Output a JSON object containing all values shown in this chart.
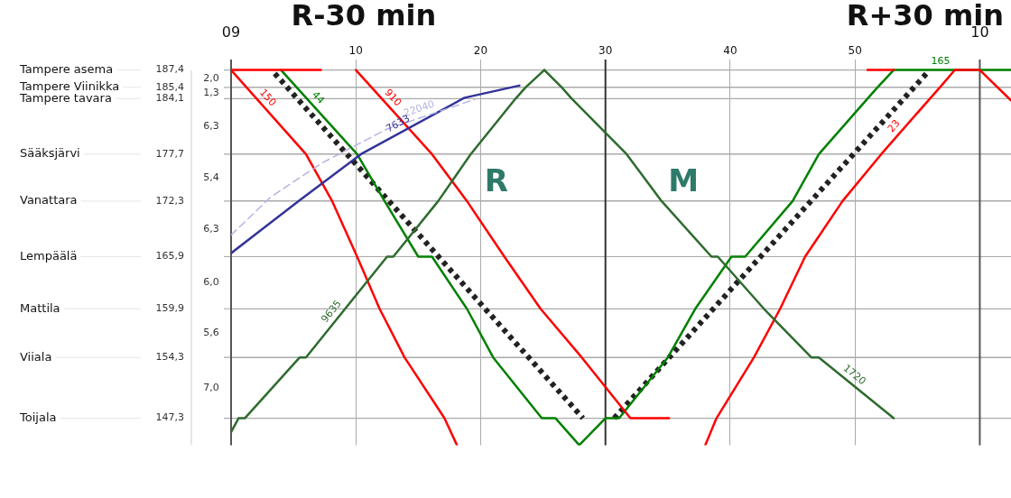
{
  "chart_data": {
    "type": "line",
    "marker": "none",
    "grid": true,
    "legend": false,
    "xlim": [
      0,
      62.5
    ],
    "xticks": [
      {
        "value": 0,
        "label": null
      },
      10,
      20,
      30,
      40,
      50,
      {
        "value": 60,
        "label": null
      }
    ],
    "x2lim": [
      9,
      10.0417
    ],
    "x2ticks": [
      {
        "value": 9,
        "label": "09"
      },
      10
    ],
    "ylim": [
      144.2,
      188.6
    ],
    "yticks": [
      {
        "value": 187.4,
        "label": "187,4"
      },
      {
        "value": 185.4,
        "label": "185,4"
      },
      {
        "value": 184.1,
        "label": "184,1"
      },
      {
        "value": 177.7,
        "label": "177,7"
      },
      {
        "value": 172.3,
        "label": "172,3"
      },
      {
        "value": 165.9,
        "label": "165,9"
      },
      {
        "value": 159.9,
        "label": "159,9"
      },
      {
        "value": 154.3,
        "label": "154,3"
      },
      {
        "value": 147.3,
        "label": "147,3"
      }
    ],
    "ref_lines": [
      {
        "axis": "y",
        "value": 187.4,
        "label": "Tampere asema"
      },
      {
        "axis": "y",
        "value": 185.4,
        "label": "Tampere Viinikka"
      },
      {
        "axis": "y",
        "value": 184.1,
        "label": "Tampere tavara"
      },
      {
        "axis": "y",
        "value": 177.7,
        "label": "Sääksjärvi"
      },
      {
        "axis": "y",
        "value": 172.3,
        "label": "Vanattara"
      },
      {
        "axis": "y",
        "value": 165.9,
        "label": "Lempäälä"
      },
      {
        "axis": "y",
        "value": 159.9,
        "label": "Mattila"
      },
      {
        "axis": "y",
        "value": 154.3,
        "label": "Viiala"
      },
      {
        "axis": "y",
        "value": 147.3,
        "label": "Toijala"
      },
      {
        "axis": "x",
        "value": 0,
        "color": "#555555"
      },
      {
        "axis": "x",
        "value": 30,
        "color": "#333333"
      },
      {
        "axis": "x",
        "value": 60,
        "color": "#555555"
      }
    ],
    "annotations": [
      "R-30 min",
      "R+30 min",
      "R",
      "M",
      "2,0",
      "1,3",
      "6,3",
      "5,4",
      "6,3",
      "6,0",
      "5,6",
      "7,0"
    ],
    "series": [
      {
        "name": "22040",
        "color": "#b4b4e0",
        "line_style": "dashed",
        "x": [
          0,
          3.2,
          7.3,
          12.5,
          19.5
        ],
        "values": [
          168.4,
          172.8,
          176.7,
          180.6,
          184.0
        ]
      },
      {
        "name": "7633",
        "color": "#333399",
        "x": [
          0,
          5.4,
          10.4,
          18.7,
          23.1
        ],
        "values": [
          166.3,
          172.3,
          177.7,
          184.2,
          185.6
        ]
      },
      {
        "name": "9635",
        "color": "#2e6b2e",
        "x": [
          0,
          0.6,
          1.1,
          5.5,
          6.0,
          12.5,
          13.0,
          16.6,
          19.2,
          22.8,
          23.6,
          25.1
        ],
        "values": [
          145.7,
          147.3,
          147.3,
          154.3,
          154.3,
          165.9,
          165.9,
          172.3,
          177.7,
          184.1,
          185.4,
          187.4
        ]
      },
      {
        "name": "1720",
        "color": "#2e6b2e",
        "x": [
          25.1,
          26.5,
          27.3,
          31.7,
          34.5,
          38.5,
          39.0,
          42.7,
          46.5,
          47.1,
          53.1
        ],
        "values": [
          187.4,
          185.4,
          184.1,
          177.7,
          172.3,
          165.9,
          165.9,
          159.9,
          154.3,
          154.3,
          147.3
        ]
      },
      {
        "color": "#ff0000",
        "x": [
          0,
          7.2
        ],
        "values": [
          187.4,
          187.4
        ]
      },
      {
        "name": "150",
        "color": "#ff0000",
        "x": [
          0,
          6.0,
          8.1,
          10.1,
          11.9,
          13.9,
          17.1,
          18.1
        ],
        "values": [
          187.4,
          177.7,
          172.3,
          165.9,
          159.9,
          154.3,
          147.3,
          144.2
        ]
      },
      {
        "name": "910",
        "color": "#ff0000",
        "x": [
          10.0,
          16.1,
          18.9,
          21.9,
          24.8,
          28.1,
          32.0,
          35.1
        ],
        "values": [
          187.4,
          177.7,
          172.3,
          165.9,
          159.9,
          154.3,
          147.3,
          147.3
        ]
      },
      {
        "name": "23",
        "color": "#ff0000",
        "x": [
          38.0,
          38.9,
          41.9,
          44.0,
          46.0,
          49.0,
          52.1,
          56.0,
          56.8,
          58.0,
          59.9
        ],
        "values": [
          144.2,
          147.3,
          154.3,
          159.9,
          165.9,
          172.3,
          177.7,
          184.1,
          185.4,
          187.4,
          187.4
        ]
      },
      {
        "color": "#ff0000",
        "x": [
          51.0,
          53.1
        ],
        "values": [
          187.4,
          187.4
        ]
      },
      {
        "color": "#ff0000",
        "x": [
          60.0,
          62.5
        ],
        "values": [
          187.4,
          183.9
        ]
      },
      {
        "name": "44",
        "color": "#008000",
        "x": [
          4.0,
          10.1,
          12.3,
          15.0,
          16.1,
          18.9,
          21.0,
          24.9,
          26.0,
          27.9
        ],
        "values": [
          187.4,
          177.7,
          172.3,
          165.9,
          165.9,
          159.9,
          154.3,
          147.3,
          147.3,
          144.2
        ]
      },
      {
        "name": "165",
        "color": "#008000",
        "x": [
          27.9,
          30.0,
          31.1,
          35.0,
          37.2,
          40.1,
          41.2,
          45.0,
          47.1,
          51.0,
          51.8,
          53.1,
          62.5
        ],
        "values": [
          144.2,
          147.3,
          147.3,
          154.3,
          159.9,
          165.9,
          165.9,
          172.3,
          177.7,
          184.1,
          185.4,
          187.4,
          187.4
        ]
      },
      {
        "color": "#222222",
        "line_style": "dotted",
        "x": [
          3.5,
          28.2
        ],
        "values": [
          187.0,
          147.3
        ]
      },
      {
        "color": "#222222",
        "line_style": "dotted",
        "x": [
          30.7,
          55.8
        ],
        "values": [
          147.3,
          187.1
        ]
      }
    ]
  }
}
